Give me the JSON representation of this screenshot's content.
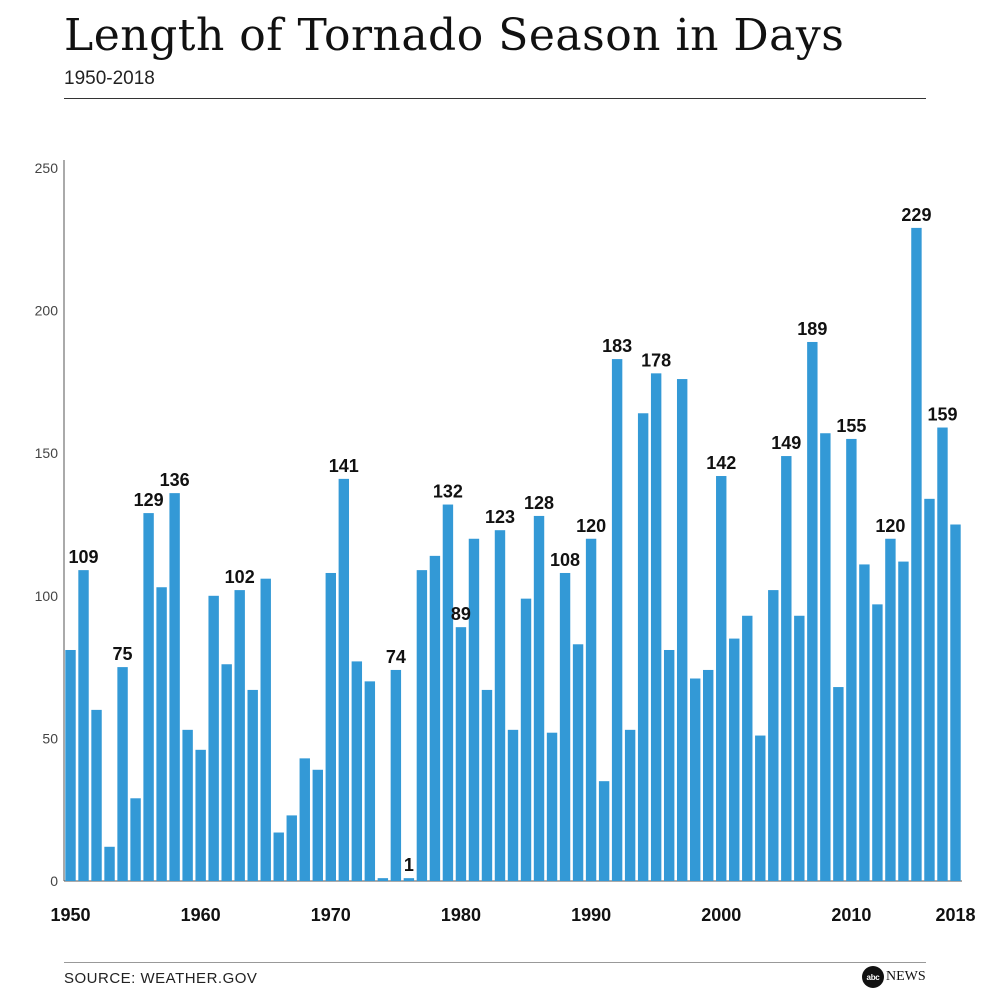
{
  "header": {
    "title": "Length of Tornado Season in Days",
    "subtitle": "1950-2018"
  },
  "footer": {
    "source": "SOURCE: WEATHER.GOV",
    "logo_mark": "abc",
    "logo_word": "NEWS"
  },
  "chart_data": {
    "type": "bar",
    "title": "Length of Tornado Season in Days",
    "subtitle": "1950-2018",
    "xlabel": "",
    "ylabel": "",
    "ylim": [
      0,
      250
    ],
    "yticks": [
      0,
      50,
      100,
      150,
      200,
      250
    ],
    "xtick_labels": [
      "1950",
      "1960",
      "1970",
      "1980",
      "1990",
      "2000",
      "2010",
      "2018"
    ],
    "bar_color": "#3399d6",
    "grid": false,
    "categories": [
      1950,
      1951,
      1952,
      1953,
      1954,
      1955,
      1956,
      1957,
      1958,
      1959,
      1960,
      1961,
      1962,
      1963,
      1964,
      1965,
      1966,
      1967,
      1968,
      1969,
      1970,
      1971,
      1972,
      1973,
      1974,
      1975,
      1976,
      1977,
      1978,
      1979,
      1980,
      1981,
      1982,
      1983,
      1984,
      1985,
      1986,
      1987,
      1988,
      1989,
      1990,
      1991,
      1992,
      1993,
      1994,
      1995,
      1996,
      1997,
      1998,
      1999,
      2000,
      2001,
      2002,
      2003,
      2004,
      2005,
      2006,
      2007,
      2008,
      2009,
      2010,
      2011,
      2012,
      2013,
      2014,
      2015,
      2016,
      2017,
      2018
    ],
    "values": [
      81,
      109,
      60,
      12,
      75,
      29,
      129,
      103,
      136,
      53,
      46,
      100,
      76,
      102,
      67,
      106,
      17,
      23,
      43,
      39,
      108,
      141,
      77,
      70,
      1,
      74,
      1,
      109,
      114,
      132,
      89,
      120,
      67,
      123,
      53,
      99,
      128,
      52,
      108,
      83,
      120,
      35,
      183,
      53,
      164,
      178,
      81,
      176,
      71,
      74,
      142,
      85,
      93,
      51,
      102,
      149,
      93,
      189,
      157,
      68,
      155,
      111,
      97,
      120,
      112,
      229,
      134,
      159,
      125
    ],
    "data_labels": [
      {
        "year": 1951,
        "label": "109"
      },
      {
        "year": 1954,
        "label": "75"
      },
      {
        "year": 1956,
        "label": "129"
      },
      {
        "year": 1958,
        "label": "136"
      },
      {
        "year": 1963,
        "label": "102"
      },
      {
        "year": 1971,
        "label": "141"
      },
      {
        "year": 1975,
        "label": "74"
      },
      {
        "year": 1976,
        "label": "1"
      },
      {
        "year": 1979,
        "label": "132"
      },
      {
        "year": 1980,
        "label": "89"
      },
      {
        "year": 1983,
        "label": "123"
      },
      {
        "year": 1986,
        "label": "128"
      },
      {
        "year": 1988,
        "label": "108"
      },
      {
        "year": 1990,
        "label": "120"
      },
      {
        "year": 1992,
        "label": "183"
      },
      {
        "year": 1995,
        "label": "178"
      },
      {
        "year": 2000,
        "label": "142"
      },
      {
        "year": 2005,
        "label": "149"
      },
      {
        "year": 2007,
        "label": "189"
      },
      {
        "year": 2010,
        "label": "155"
      },
      {
        "year": 2013,
        "label": "120"
      },
      {
        "year": 2015,
        "label": "229"
      },
      {
        "year": 2017,
        "label": "159"
      }
    ]
  }
}
